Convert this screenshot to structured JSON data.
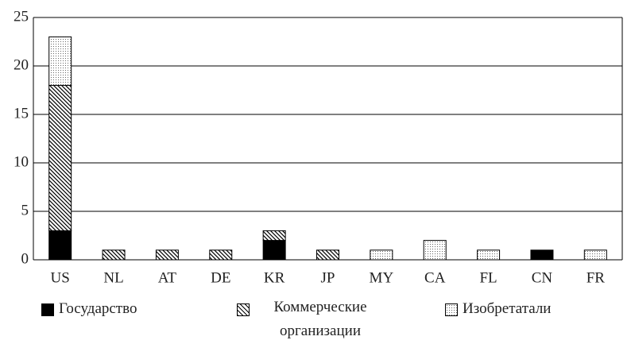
{
  "chart_data": {
    "type": "stacked_bar",
    "categories": [
      "US",
      "NL",
      "AT",
      "DE",
      "KR",
      "JP",
      "MY",
      "CA",
      "FL",
      "CN",
      "FR"
    ],
    "series": [
      {
        "name": "Государство",
        "color": "#000000",
        "pattern": "solid",
        "values": [
          3,
          0,
          0,
          0,
          2,
          0,
          0,
          0,
          0,
          1,
          0
        ]
      },
      {
        "name": "Коммерческие организации",
        "color": "#000000",
        "pattern": "hatch",
        "values": [
          15,
          1,
          1,
          1,
          1,
          1,
          0,
          0,
          0,
          0,
          0
        ]
      },
      {
        "name": "Изобретатали",
        "color": "#000000",
        "pattern": "dots",
        "values": [
          5,
          0,
          0,
          0,
          0,
          0,
          1,
          2,
          1,
          0,
          1
        ]
      }
    ],
    "ylim": [
      0,
      25
    ],
    "yticks": [
      0,
      5,
      10,
      15,
      20,
      25
    ],
    "grid": true
  }
}
